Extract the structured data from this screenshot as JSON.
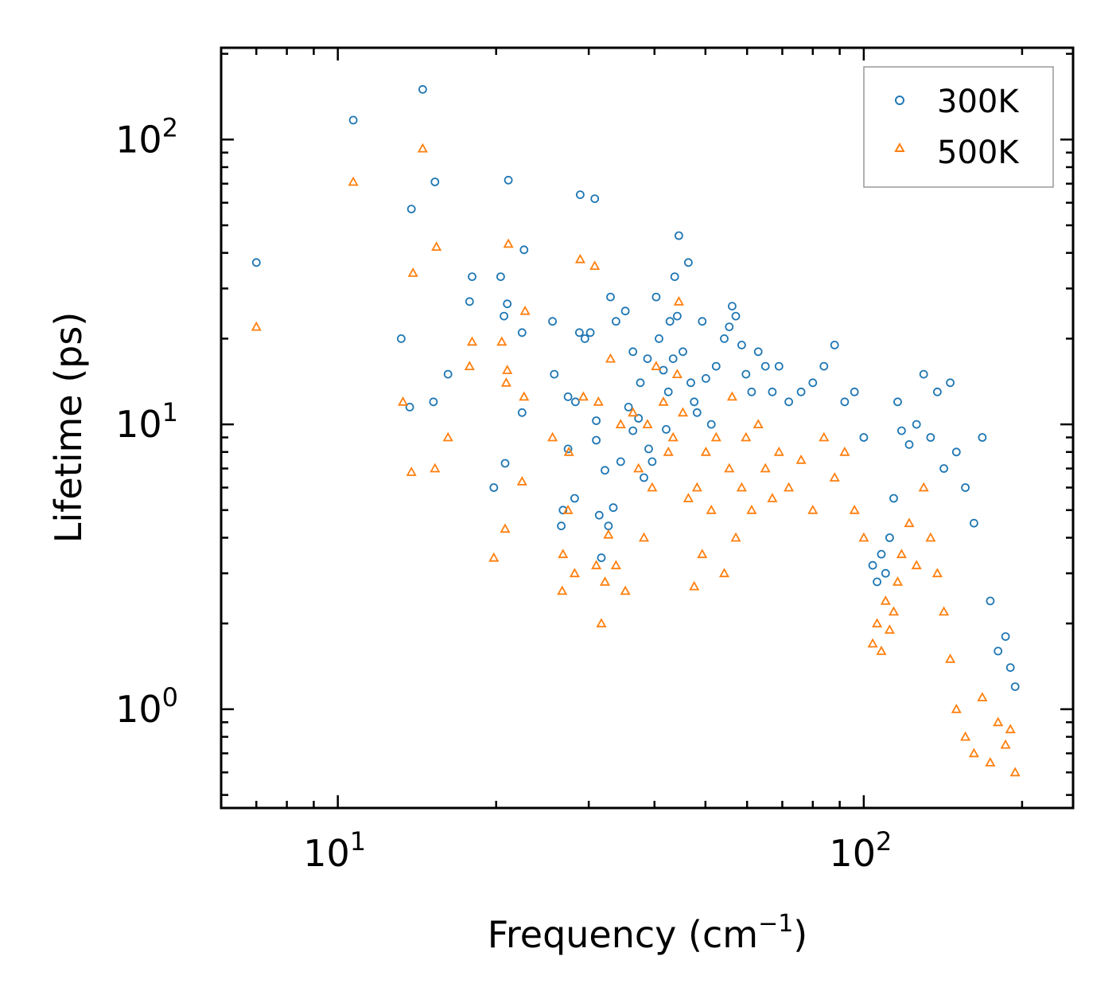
{
  "chart_data": {
    "type": "scatter",
    "title": "",
    "xlabel": "Frequency (cm",
    "xlabel_sup": "−1",
    "xlabel_suffix": ")",
    "ylabel": "Lifetime (ps)",
    "xscale": "log",
    "yscale": "log",
    "xlim": [
      6,
      250
    ],
    "ylim": [
      0.45,
      210
    ],
    "x_ticks": [
      {
        "base": "10",
        "exp": "1",
        "value": 10
      },
      {
        "base": "10",
        "exp": "2",
        "value": 100
      }
    ],
    "y_ticks": [
      {
        "base": "10",
        "exp": "0",
        "value": 1
      },
      {
        "base": "10",
        "exp": "1",
        "value": 10
      },
      {
        "base": "10",
        "exp": "2",
        "value": 100
      }
    ],
    "legend_position": "top-right",
    "series": [
      {
        "name": "300K",
        "color": "#1f77b4",
        "marker": "circle",
        "points": [
          [
            7,
            37
          ],
          [
            10.7,
            117
          ],
          [
            13.2,
            20
          ],
          [
            13.7,
            11.5
          ],
          [
            13.8,
            57
          ],
          [
            14.5,
            150
          ],
          [
            15.2,
            12
          ],
          [
            15.3,
            71
          ],
          [
            16.2,
            15
          ],
          [
            17.8,
            27
          ],
          [
            18,
            33
          ],
          [
            19.8,
            6
          ],
          [
            20.4,
            33
          ],
          [
            20.7,
            24
          ],
          [
            20.8,
            7.3
          ],
          [
            21,
            26.5
          ],
          [
            21.1,
            72
          ],
          [
            22.4,
            11
          ],
          [
            22.4,
            21
          ],
          [
            22.6,
            41
          ],
          [
            25.6,
            23
          ],
          [
            25.8,
            15
          ],
          [
            26.6,
            4.4
          ],
          [
            26.8,
            5
          ],
          [
            27.4,
            12.5
          ],
          [
            27.4,
            8.2
          ],
          [
            28.2,
            5.5
          ],
          [
            28.3,
            12
          ],
          [
            28.8,
            21
          ],
          [
            28.9,
            64
          ],
          [
            29.5,
            20
          ],
          [
            30.2,
            21
          ],
          [
            30.8,
            62
          ],
          [
            31,
            8.8
          ],
          [
            31,
            10.3
          ],
          [
            31.4,
            4.8
          ],
          [
            31.7,
            3.4
          ],
          [
            32.2,
            6.9
          ],
          [
            32.7,
            4.4
          ],
          [
            33,
            28
          ],
          [
            33.4,
            5.1
          ],
          [
            33.8,
            23
          ],
          [
            34.5,
            7.4
          ],
          [
            35.2,
            25
          ],
          [
            35.7,
            11.5
          ],
          [
            36.4,
            9.5
          ],
          [
            36.4,
            18
          ],
          [
            37.3,
            10.5
          ],
          [
            37.6,
            14
          ],
          [
            38.2,
            6.5
          ],
          [
            38.8,
            17
          ],
          [
            39,
            8.2
          ],
          [
            39.6,
            7.4
          ],
          [
            40.3,
            28
          ],
          [
            40.8,
            20
          ],
          [
            41.6,
            15.5
          ],
          [
            42.1,
            9.6
          ],
          [
            42.5,
            13
          ],
          [
            42.8,
            23
          ],
          [
            43.4,
            17
          ],
          [
            43.7,
            33
          ],
          [
            44.2,
            24
          ],
          [
            44.5,
            46
          ],
          [
            45.3,
            18
          ],
          [
            46.4,
            37
          ],
          [
            46.9,
            14
          ],
          [
            47.6,
            12
          ],
          [
            48.2,
            11
          ],
          [
            49.3,
            23
          ],
          [
            50.1,
            14.5
          ],
          [
            51.3,
            10
          ],
          [
            52.4,
            16
          ],
          [
            54.3,
            20
          ],
          [
            55.5,
            22
          ],
          [
            56.2,
            26
          ],
          [
            57.1,
            24
          ],
          [
            58.6,
            19
          ],
          [
            59.7,
            15
          ],
          [
            61.2,
            13
          ],
          [
            63,
            18
          ],
          [
            65,
            16
          ],
          [
            67,
            13
          ],
          [
            69,
            16
          ],
          [
            72,
            12
          ],
          [
            76,
            13
          ],
          [
            80,
            14
          ],
          [
            84,
            16
          ],
          [
            88,
            19
          ],
          [
            92,
            12
          ],
          [
            96,
            13
          ],
          [
            100,
            9
          ],
          [
            104,
            3.2
          ],
          [
            106,
            2.8
          ],
          [
            108,
            3.5
          ],
          [
            110,
            3
          ],
          [
            112,
            4
          ],
          [
            114,
            5.5
          ],
          [
            116,
            12
          ],
          [
            118,
            9.5
          ],
          [
            122,
            8.5
          ],
          [
            126,
            10
          ],
          [
            130,
            15
          ],
          [
            134,
            9
          ],
          [
            138,
            13
          ],
          [
            142,
            7
          ],
          [
            146,
            14
          ],
          [
            150,
            8
          ],
          [
            156,
            6
          ],
          [
            162,
            4.5
          ],
          [
            168,
            9
          ],
          [
            174,
            2.4
          ],
          [
            180,
            1.6
          ],
          [
            186,
            1.8
          ],
          [
            190,
            1.4
          ],
          [
            194,
            1.2
          ]
        ]
      },
      {
        "name": "500K",
        "color": "#ff7f0e",
        "marker": "triangle",
        "points": [
          [
            7,
            22
          ],
          [
            10.7,
            71
          ],
          [
            13.3,
            12
          ],
          [
            13.8,
            6.8
          ],
          [
            13.9,
            34
          ],
          [
            14.5,
            93
          ],
          [
            15.3,
            7
          ],
          [
            15.4,
            42
          ],
          [
            16.2,
            9
          ],
          [
            17.8,
            16
          ],
          [
            18,
            19.5
          ],
          [
            19.8,
            3.4
          ],
          [
            20.5,
            19.5
          ],
          [
            20.8,
            4.3
          ],
          [
            20.9,
            14
          ],
          [
            21,
            15.5
          ],
          [
            21.1,
            43
          ],
          [
            22.4,
            6.3
          ],
          [
            22.6,
            12.5
          ],
          [
            22.7,
            25
          ],
          [
            25.6,
            9
          ],
          [
            26.7,
            2.6
          ],
          [
            26.8,
            3.5
          ],
          [
            27.4,
            5
          ],
          [
            27.5,
            8
          ],
          [
            28.2,
            3
          ],
          [
            28.9,
            38
          ],
          [
            29.3,
            12.5
          ],
          [
            30.8,
            36
          ],
          [
            31,
            3.2
          ],
          [
            31.3,
            12
          ],
          [
            31.7,
            2
          ],
          [
            32.2,
            2.8
          ],
          [
            32.7,
            4.1
          ],
          [
            33,
            17
          ],
          [
            33.8,
            3.2
          ],
          [
            34.5,
            10
          ],
          [
            35.2,
            2.6
          ],
          [
            36.4,
            11
          ],
          [
            37.3,
            7
          ],
          [
            38.2,
            4
          ],
          [
            38.8,
            10
          ],
          [
            39.6,
            6
          ],
          [
            40.3,
            16
          ],
          [
            41.6,
            12
          ],
          [
            42.5,
            8
          ],
          [
            43.4,
            9
          ],
          [
            44.2,
            15
          ],
          [
            44.5,
            27
          ],
          [
            45.3,
            11
          ],
          [
            46.4,
            5.5
          ],
          [
            47.6,
            2.7
          ],
          [
            48.2,
            6
          ],
          [
            49.3,
            3.5
          ],
          [
            50.1,
            8
          ],
          [
            51.3,
            5
          ],
          [
            52.4,
            9
          ],
          [
            54.3,
            3
          ],
          [
            55.5,
            7
          ],
          [
            56.2,
            12.5
          ],
          [
            57.1,
            4
          ],
          [
            58.6,
            6
          ],
          [
            59.7,
            9
          ],
          [
            61.2,
            5
          ],
          [
            63,
            10
          ],
          [
            65,
            7
          ],
          [
            67,
            5.5
          ],
          [
            69,
            8
          ],
          [
            72,
            6
          ],
          [
            76,
            7.5
          ],
          [
            80,
            5
          ],
          [
            84,
            9
          ],
          [
            88,
            6.5
          ],
          [
            92,
            8
          ],
          [
            96,
            5
          ],
          [
            100,
            4
          ],
          [
            104,
            1.7
          ],
          [
            106,
            2
          ],
          [
            108,
            1.6
          ],
          [
            110,
            2.4
          ],
          [
            112,
            1.9
          ],
          [
            114,
            2.2
          ],
          [
            116,
            2.8
          ],
          [
            118,
            3.5
          ],
          [
            122,
            4.5
          ],
          [
            126,
            3.2
          ],
          [
            130,
            6
          ],
          [
            134,
            4
          ],
          [
            138,
            3
          ],
          [
            142,
            2.2
          ],
          [
            146,
            1.5
          ],
          [
            150,
            1
          ],
          [
            156,
            0.8
          ],
          [
            162,
            0.7
          ],
          [
            168,
            1.1
          ],
          [
            174,
            0.65
          ],
          [
            180,
            0.9
          ],
          [
            186,
            0.75
          ],
          [
            190,
            0.85
          ],
          [
            194,
            0.6
          ]
        ]
      }
    ]
  }
}
